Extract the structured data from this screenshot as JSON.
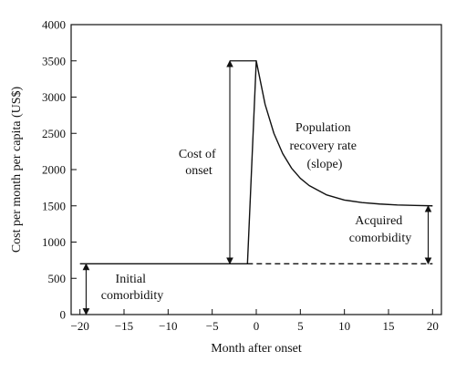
{
  "chart_data": {
    "type": "line",
    "xlabel": "Month after onset",
    "ylabel": "Cost per month per capita (US$)",
    "xlim": [
      -21,
      21
    ],
    "ylim": [
      0,
      4000
    ],
    "xticks": [
      -20,
      -15,
      -10,
      -5,
      0,
      5,
      10,
      15,
      20
    ],
    "yticks": [
      0,
      500,
      1000,
      1500,
      2000,
      2500,
      3000,
      3500,
      4000
    ],
    "grid": false,
    "series": [
      {
        "style": "solid",
        "x": [
          -20,
          -1,
          0,
          1,
          2,
          3,
          4,
          5,
          6,
          8,
          10,
          12,
          14,
          16,
          18,
          20
        ],
        "y": [
          700,
          700,
          3500,
          2900,
          2500,
          2220,
          2020,
          1880,
          1780,
          1650,
          1580,
          1545,
          1525,
          1512,
          1505,
          1500
        ]
      },
      {
        "style": "dashed",
        "x": [
          -1,
          20
        ],
        "y": [
          700,
          700
        ]
      }
    ],
    "cost_of_onset_bracket": {
      "x": -3,
      "y_from": 700,
      "y_to": 3500
    },
    "onset_peak_bar": {
      "x_from": -3,
      "x_to": 0,
      "y": 3500
    },
    "acquired_comorbidity_bracket": {
      "x": 19.5,
      "y_from": 700,
      "y_to": 1500
    },
    "initial_comorbidity_bracket": {
      "x": -19.3,
      "y_from": 0,
      "y_to": 700
    },
    "annotations": {
      "cost_of_onset": [
        "Cost of",
        "onset"
      ],
      "recovery": [
        "Population",
        "recovery rate",
        "(slope)"
      ],
      "acquired": [
        "Acquired",
        "comorbidity"
      ],
      "initial": [
        "Initial",
        "comorbidity"
      ]
    }
  }
}
